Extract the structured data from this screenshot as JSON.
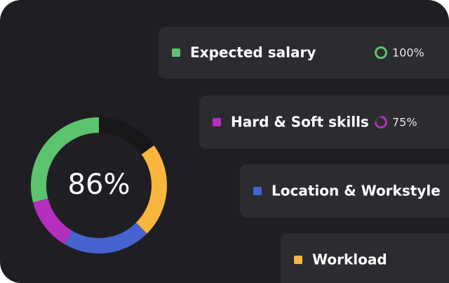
{
  "chart_data": {
    "type": "donut",
    "center_label": "86%",
    "categories": [
      "Expected salary",
      "Hard & Soft skills",
      "Location & Workstyle",
      "Workload",
      null
    ],
    "values": [
      29,
      12.5,
      21,
      22.5,
      15
    ],
    "colors": [
      "#5cc46e",
      "#b42ebf",
      "#4663cf",
      "#f8b63c",
      "#18181b"
    ],
    "scores": [
      100,
      75
    ],
    "score_labels": [
      "100%",
      "75%"
    ]
  }
}
